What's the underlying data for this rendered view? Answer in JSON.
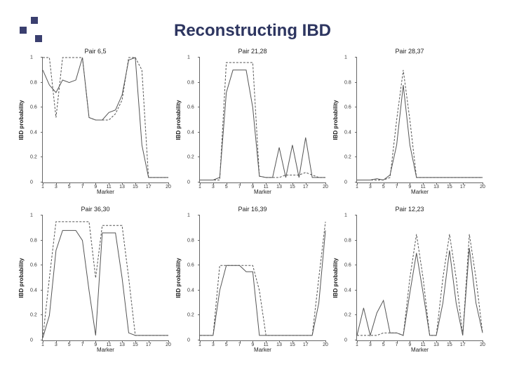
{
  "title": "Reconstructing IBD",
  "chart": {
    "type": "line-grid",
    "background_color": "#ffffff",
    "title_color": "#2d3560",
    "line_color": "#555555",
    "axis_color": "#666666",
    "title_fontsize": 24,
    "label_fontsize": 8,
    "tick_fontsize": 7,
    "ylabel": "IBD probability",
    "xlabel": "Marker",
    "ylim": [
      0,
      1
    ],
    "yticks": [
      0,
      0.2,
      0.4,
      0.6,
      0.8,
      1
    ],
    "xlim": [
      1,
      20
    ],
    "xticks": [
      1,
      3,
      5,
      7,
      9,
      11,
      13,
      15,
      17,
      20
    ],
    "panels": [
      {
        "title": "Pair 6,5",
        "series": [
          {
            "style": "solid",
            "x": [
              1,
              2,
              3,
              4,
              5,
              6,
              7,
              8,
              9,
              10,
              11,
              12,
              13,
              14,
              15,
              16,
              17,
              18,
              19,
              20
            ],
            "y": [
              0.9,
              0.78,
              0.72,
              0.82,
              0.8,
              0.82,
              1.0,
              0.52,
              0.5,
              0.5,
              0.56,
              0.58,
              0.7,
              0.98,
              1.0,
              0.3,
              0.04,
              0.04,
              0.04,
              0.04
            ]
          },
          {
            "style": "dash",
            "x": [
              1,
              2,
              3,
              4,
              5,
              6,
              7,
              8,
              9,
              10,
              11,
              12,
              13,
              14,
              15,
              16,
              17,
              18,
              19,
              20
            ],
            "y": [
              1.0,
              1.0,
              0.52,
              1.0,
              1.0,
              1.0,
              1.0,
              0.52,
              0.5,
              0.5,
              0.5,
              0.55,
              0.66,
              1.0,
              1.0,
              0.9,
              0.04,
              0.04,
              0.04,
              0.04
            ]
          }
        ]
      },
      {
        "title": "Pair 21,28",
        "series": [
          {
            "style": "solid",
            "x": [
              1,
              2,
              3,
              4,
              5,
              6,
              7,
              8,
              9,
              10,
              11,
              12,
              13,
              14,
              15,
              16,
              17,
              18,
              19,
              20
            ],
            "y": [
              0.02,
              0.02,
              0.02,
              0.04,
              0.72,
              0.9,
              0.9,
              0.9,
              0.6,
              0.05,
              0.04,
              0.04,
              0.28,
              0.04,
              0.3,
              0.04,
              0.36,
              0.04,
              0.04,
              0.04
            ]
          },
          {
            "style": "dash",
            "x": [
              1,
              2,
              3,
              4,
              5,
              6,
              7,
              8,
              9,
              10,
              11,
              12,
              13,
              14,
              15,
              16,
              17,
              18,
              19,
              20
            ],
            "y": [
              0.02,
              0.02,
              0.02,
              0.02,
              0.96,
              0.96,
              0.96,
              0.96,
              0.96,
              0.05,
              0.04,
              0.04,
              0.04,
              0.06,
              0.06,
              0.06,
              0.08,
              0.06,
              0.04,
              0.04
            ]
          }
        ]
      },
      {
        "title": "Pair 28,37",
        "series": [
          {
            "style": "solid",
            "x": [
              1,
              2,
              3,
              4,
              5,
              6,
              7,
              8,
              9,
              10,
              11,
              12,
              13,
              14,
              15,
              16,
              17,
              18,
              19,
              20
            ],
            "y": [
              0.02,
              0.02,
              0.02,
              0.03,
              0.02,
              0.06,
              0.3,
              0.78,
              0.3,
              0.04,
              0.04,
              0.04,
              0.04,
              0.04,
              0.04,
              0.04,
              0.04,
              0.04,
              0.04,
              0.04
            ]
          },
          {
            "style": "dash",
            "x": [
              1,
              2,
              3,
              4,
              5,
              6,
              7,
              8,
              9,
              10,
              11,
              12,
              13,
              14,
              15,
              16,
              17,
              18,
              19,
              20
            ],
            "y": [
              0.02,
              0.02,
              0.02,
              0.02,
              0.02,
              0.04,
              0.5,
              0.9,
              0.5,
              0.04,
              0.04,
              0.04,
              0.04,
              0.04,
              0.04,
              0.04,
              0.04,
              0.04,
              0.04,
              0.04
            ]
          }
        ]
      },
      {
        "title": "Pair 36,30",
        "series": [
          {
            "style": "solid",
            "x": [
              1,
              2,
              3,
              4,
              5,
              6,
              7,
              8,
              9,
              10,
              11,
              12,
              13,
              14,
              15,
              16,
              17,
              18,
              19,
              20
            ],
            "y": [
              0.02,
              0.2,
              0.72,
              0.88,
              0.88,
              0.88,
              0.8,
              0.4,
              0.04,
              0.86,
              0.86,
              0.86,
              0.5,
              0.06,
              0.04,
              0.04,
              0.04,
              0.04,
              0.04,
              0.04
            ]
          },
          {
            "style": "dash",
            "x": [
              1,
              2,
              3,
              4,
              5,
              6,
              7,
              8,
              9,
              10,
              11,
              12,
              13,
              14,
              15,
              16,
              17,
              18,
              19,
              20
            ],
            "y": [
              0.02,
              0.5,
              0.95,
              0.95,
              0.95,
              0.95,
              0.95,
              0.95,
              0.5,
              0.92,
              0.92,
              0.92,
              0.92,
              0.5,
              0.04,
              0.04,
              0.04,
              0.04,
              0.04,
              0.04
            ]
          }
        ]
      },
      {
        "title": "Pair 16,39",
        "series": [
          {
            "style": "solid",
            "x": [
              1,
              2,
              3,
              4,
              5,
              6,
              7,
              8,
              9,
              10,
              11,
              12,
              13,
              14,
              15,
              16,
              17,
              18,
              19,
              20
            ],
            "y": [
              0.04,
              0.04,
              0.04,
              0.4,
              0.6,
              0.6,
              0.6,
              0.55,
              0.55,
              0.04,
              0.04,
              0.04,
              0.04,
              0.04,
              0.04,
              0.04,
              0.04,
              0.04,
              0.3,
              0.88
            ]
          },
          {
            "style": "dash",
            "x": [
              1,
              2,
              3,
              4,
              5,
              6,
              7,
              8,
              9,
              10,
              11,
              12,
              13,
              14,
              15,
              16,
              17,
              18,
              19,
              20
            ],
            "y": [
              0.04,
              0.04,
              0.04,
              0.6,
              0.6,
              0.6,
              0.6,
              0.6,
              0.6,
              0.4,
              0.04,
              0.04,
              0.04,
              0.04,
              0.04,
              0.04,
              0.04,
              0.04,
              0.5,
              0.95
            ]
          }
        ]
      },
      {
        "title": "Pair 12,23",
        "series": [
          {
            "style": "solid",
            "x": [
              1,
              2,
              3,
              4,
              5,
              6,
              7,
              8,
              9,
              10,
              11,
              12,
              13,
              14,
              15,
              16,
              17,
              18,
              19,
              20
            ],
            "y": [
              0.04,
              0.26,
              0.04,
              0.22,
              0.32,
              0.06,
              0.06,
              0.04,
              0.38,
              0.7,
              0.38,
              0.04,
              0.04,
              0.3,
              0.72,
              0.3,
              0.04,
              0.74,
              0.3,
              0.06
            ]
          },
          {
            "style": "dash",
            "x": [
              1,
              2,
              3,
              4,
              5,
              6,
              7,
              8,
              9,
              10,
              11,
              12,
              13,
              14,
              15,
              16,
              17,
              18,
              19,
              20
            ],
            "y": [
              0.04,
              0.04,
              0.04,
              0.04,
              0.06,
              0.06,
              0.06,
              0.04,
              0.5,
              0.85,
              0.5,
              0.04,
              0.04,
              0.5,
              0.85,
              0.5,
              0.04,
              0.85,
              0.5,
              0.06
            ]
          }
        ]
      }
    ]
  }
}
